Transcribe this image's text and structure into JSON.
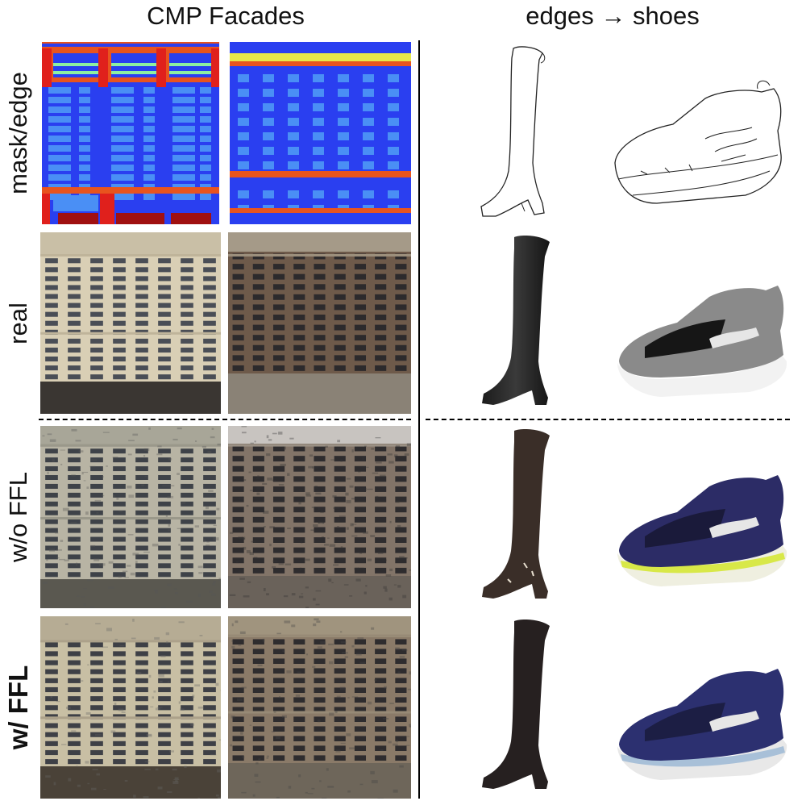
{
  "headers": {
    "facades": "CMP Facades",
    "shoes": "edges → shoes"
  },
  "rows": [
    {
      "label": "mask/edge",
      "bold": false
    },
    {
      "label": "real",
      "bold": false
    },
    {
      "label": "w/o FFL",
      "bold": false
    },
    {
      "label": "w/ FFL",
      "bold": true
    }
  ],
  "colors": {
    "mask_blue": "#2a3ff0",
    "mask_window": "#4a8ff5",
    "mask_red": "#e0201c",
    "mask_orange": "#e8541e",
    "mask_yellow": "#e6e84a",
    "mask_dark_red": "#a01010"
  }
}
